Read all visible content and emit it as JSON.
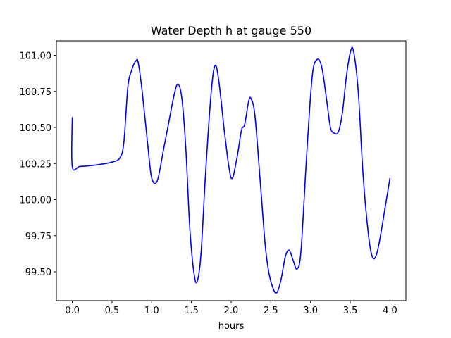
{
  "chart_data": {
    "type": "line",
    "title": "Water Depth h at gauge 550",
    "xlabel": "hours",
    "ylabel": "",
    "xlim": [
      -0.2,
      4.2
    ],
    "ylim": [
      99.3,
      101.1
    ],
    "x_ticks": [
      0.0,
      0.5,
      1.0,
      1.5,
      2.0,
      2.5,
      3.0,
      3.5,
      4.0
    ],
    "x_tick_labels": [
      "0.0",
      "0.5",
      "1.0",
      "1.5",
      "2.0",
      "2.5",
      "3.0",
      "3.5",
      "4.0"
    ],
    "y_ticks": [
      99.5,
      99.75,
      100.0,
      100.25,
      100.5,
      100.75,
      101.0
    ],
    "y_tick_labels": [
      "99.50",
      "99.75",
      "100.00",
      "100.25",
      "100.50",
      "100.75",
      "101.00"
    ],
    "grid": false,
    "series": [
      {
        "color": "#0000ff",
        "x": [
          0.0,
          0.0,
          0.1,
          0.3,
          0.5,
          0.6,
          0.65,
          0.7,
          0.75,
          0.8,
          0.83,
          0.88,
          0.95,
          1.0,
          1.07,
          1.15,
          1.22,
          1.28,
          1.33,
          1.38,
          1.43,
          1.48,
          1.53,
          1.57,
          1.62,
          1.68,
          1.75,
          1.8,
          1.85,
          1.92,
          2.0,
          2.07,
          2.13,
          2.17,
          2.22,
          2.25,
          2.3,
          2.37,
          2.43,
          2.48,
          2.54,
          2.58,
          2.63,
          2.68,
          2.73,
          2.78,
          2.83,
          2.88,
          2.95,
          3.02,
          3.08,
          3.14,
          3.2,
          3.25,
          3.3,
          3.35,
          3.4,
          3.45,
          3.5,
          3.54,
          3.6,
          3.66,
          3.73,
          3.78,
          3.83,
          3.88,
          3.94,
          4.0
        ],
        "y": [
          100.57,
          100.23,
          100.23,
          100.24,
          100.26,
          100.29,
          100.4,
          100.78,
          100.9,
          100.96,
          100.95,
          100.75,
          100.38,
          100.15,
          100.13,
          100.35,
          100.55,
          100.72,
          100.8,
          100.7,
          100.35,
          99.8,
          99.5,
          99.43,
          99.62,
          100.2,
          100.75,
          100.93,
          100.8,
          100.45,
          100.15,
          100.28,
          100.48,
          100.52,
          100.68,
          100.7,
          100.58,
          100.1,
          99.68,
          99.48,
          99.37,
          99.36,
          99.45,
          99.6,
          99.65,
          99.58,
          99.52,
          99.65,
          100.3,
          100.85,
          100.97,
          100.92,
          100.7,
          100.5,
          100.46,
          100.47,
          100.6,
          100.85,
          101.02,
          101.03,
          100.75,
          100.18,
          99.75,
          99.6,
          99.62,
          99.75,
          99.95,
          100.15
        ]
      }
    ]
  }
}
